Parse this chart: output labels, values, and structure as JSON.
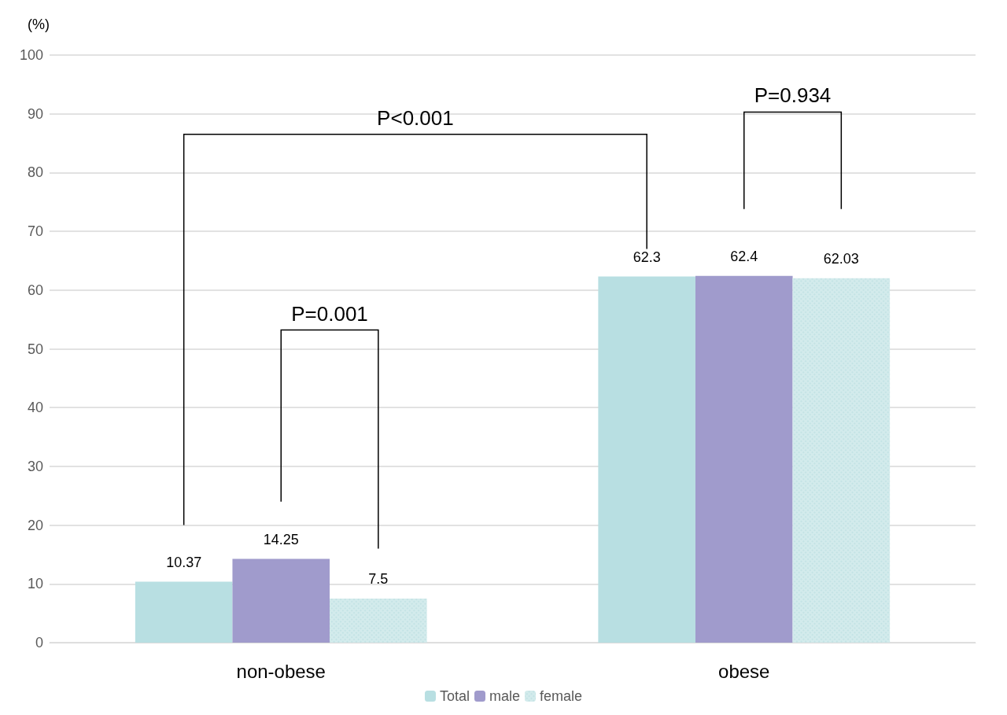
{
  "chart_data": {
    "type": "bar",
    "ylabel": "(%)",
    "categories": [
      "non-obese",
      "obese"
    ],
    "series": [
      {
        "name": "Total",
        "color": "#b8dfe2",
        "values": [
          10.37,
          62.3
        ]
      },
      {
        "name": "male",
        "color": "#a09bcc",
        "values": [
          14.25,
          62.4
        ]
      },
      {
        "name": "female",
        "color": "#d3ebec",
        "values": [
          7.5,
          62.03
        ]
      }
    ],
    "ylim": [
      0,
      100
    ],
    "yticks": [
      0,
      10,
      20,
      30,
      40,
      50,
      60,
      70,
      80,
      90,
      100
    ],
    "grid": "y",
    "legend": "bottom",
    "data_labels": true,
    "annotations": [
      "P<0.001",
      "P=0.001",
      "P=0.934"
    ]
  }
}
